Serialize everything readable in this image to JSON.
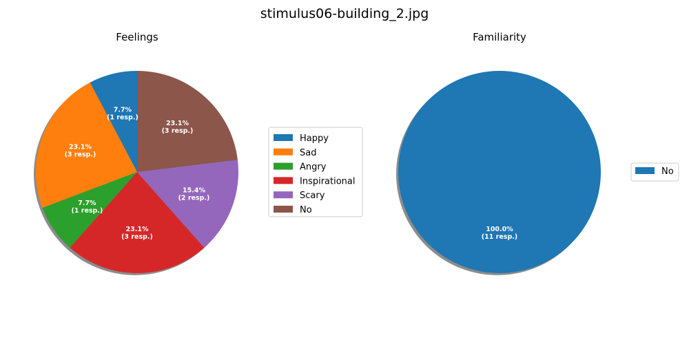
{
  "figure": {
    "title": "stimulus06-building_2.jpg"
  },
  "chart_data": [
    {
      "type": "pie",
      "title": "Feelings",
      "categories": [
        "Happy",
        "Sad",
        "Angry",
        "Inspirational",
        "Scary",
        "No"
      ],
      "values": [
        1,
        3,
        1,
        3,
        2,
        3
      ],
      "colors": [
        "#1f77b4",
        "#ff7f0e",
        "#2ca02c",
        "#d62728",
        "#9467bd",
        "#8c564b"
      ],
      "labels": [
        [
          "7.7%",
          "(1 resp.)"
        ],
        [
          "23.1%",
          "(3 resp.)"
        ],
        [
          "7.7%",
          "(1 resp.)"
        ],
        [
          "23.1%",
          "(3 resp.)"
        ],
        [
          "15.4%",
          "(2 resp.)"
        ],
        [
          "23.1%",
          "(3 resp.)"
        ]
      ],
      "start_angle_deg": 90,
      "direction": "counterclockwise",
      "shadow": true,
      "legend": {
        "placement": "right",
        "entries": [
          "Happy",
          "Sad",
          "Angry",
          "Inspirational",
          "Scary",
          "No"
        ]
      }
    },
    {
      "type": "pie",
      "title": "Familiarity",
      "categories": [
        "No"
      ],
      "values": [
        11
      ],
      "colors": [
        "#1f77b4"
      ],
      "labels": [
        [
          "100.0%",
          "(11 resp.)"
        ]
      ],
      "start_angle_deg": 90,
      "direction": "counterclockwise",
      "shadow": true,
      "legend": {
        "placement": "right",
        "entries": [
          "No"
        ]
      }
    }
  ]
}
